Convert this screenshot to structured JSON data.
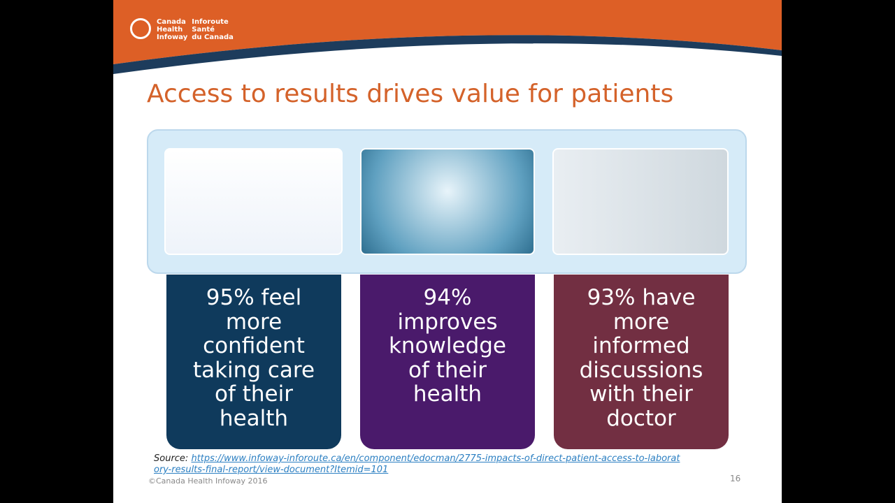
{
  "logo": {
    "english": [
      "Canada",
      "Health",
      "Infoway"
    ],
    "french": [
      "Inforoute",
      "Santé",
      "du Canada"
    ]
  },
  "title": "Access to results drives value for patients",
  "cards": [
    {
      "lines": [
        "95% feel",
        "more",
        "confident",
        "taking care",
        "of their",
        "health"
      ]
    },
    {
      "lines": [
        "94%",
        "improves",
        "knowledge",
        "of their",
        "health"
      ]
    },
    {
      "lines": [
        "93% have",
        "more",
        "informed",
        "discussions",
        "with their",
        "doctor"
      ]
    }
  ],
  "source": {
    "label": "Source:",
    "url": "https://www.infoway-inforoute.ca/en/component/edocman/2775-impacts-of-direct-patient-access-to-laboratory-results-final-report/view-document?Itemid=101"
  },
  "copyright": "©Canada Health Infoway 2016",
  "page_number": "16"
}
